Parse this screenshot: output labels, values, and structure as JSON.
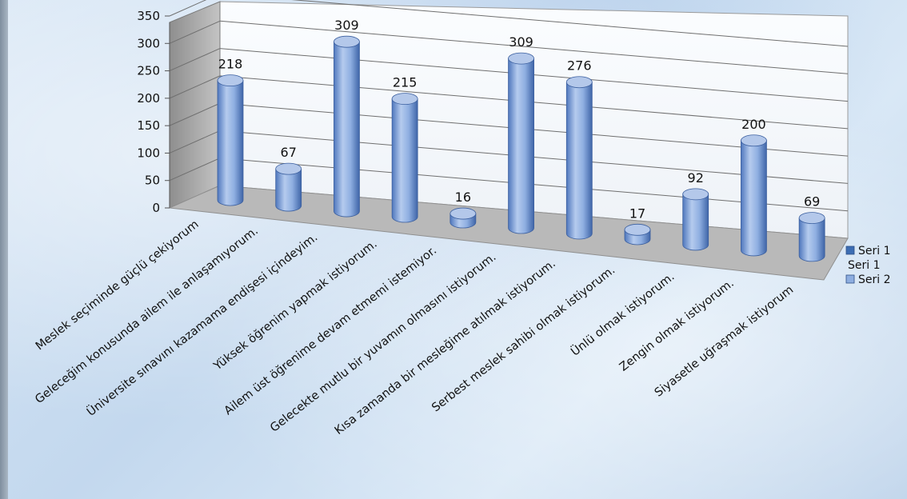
{
  "chart_data": {
    "type": "bar",
    "style": "3d-cylinder",
    "categories": [
      "Meslek seçiminde güçlü çekiyorum",
      "Geleceğim konusunda ailem ile anlaşamıyorum.",
      "Üniversite sınavını kazamama endişesi içindeyim.",
      "Yüksek öğrenim yapmak istiyorum.",
      "Ailem üst öğrenime devam etmemi istemiyor.",
      "Gelecekte mutlu bir yuvamın olmasını istiyorum.",
      "Kısa zamanda bir mesleğime atılmak istiyorum.",
      "Serbest meslek sahibi olmak istiyorum.",
      "Ünlü olmak istiyorum.",
      "Zengin olmak istiyorum.",
      "Siyasetle uğraşmak istiyorum"
    ],
    "series": [
      {
        "name": "Seri 1",
        "values": [
          218,
          67,
          309,
          215,
          16,
          309,
          276,
          17,
          92,
          200,
          69
        ],
        "color": "#8eaee0"
      }
    ],
    "data_labels": [
      "218",
      "67",
      "309",
      "215",
      "16",
      "309",
      "276",
      "17",
      "92",
      "200",
      "69"
    ],
    "y_ticks": [
      "0",
      "50",
      "100",
      "150",
      "200",
      "250",
      "300",
      "350"
    ],
    "ylim": [
      0,
      350
    ],
    "grid": true,
    "legend": {
      "position": "right",
      "entries": [
        {
          "label": "Seri 1",
          "color": "#3c6db3"
        },
        {
          "label": "Seri 1",
          "color": null
        },
        {
          "label": "Seri 2",
          "color": "#8eaee0"
        }
      ]
    }
  }
}
